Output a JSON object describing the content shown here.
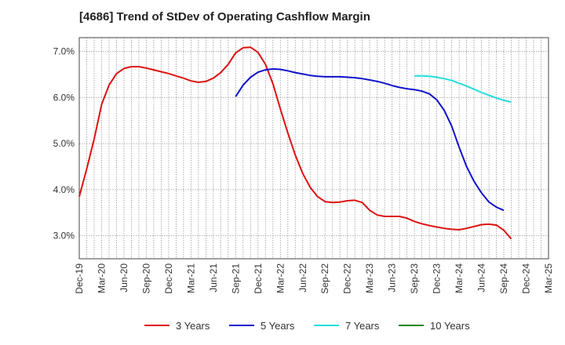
{
  "chart_data": {
    "type": "line",
    "title": "[4686]  Trend of StDev of Operating Cashflow Margin",
    "xlabel": "",
    "ylabel": "",
    "x_ticks": [
      "Dec-19",
      "Mar-20",
      "Jun-20",
      "Sep-20",
      "Dec-20",
      "Mar-21",
      "Jun-21",
      "Sep-21",
      "Dec-21",
      "Mar-22",
      "Jun-22",
      "Sep-22",
      "Dec-22",
      "Mar-23",
      "Jun-23",
      "Sep-23",
      "Dec-23",
      "Mar-24",
      "Jun-24",
      "Sep-24",
      "Dec-24",
      "Mar-25"
    ],
    "y_ticks": [
      "3.0%",
      "4.0%",
      "5.0%",
      "6.0%",
      "7.0%"
    ],
    "ylim": [
      2.5,
      7.3
    ],
    "grid": true,
    "legend_position": "bottom",
    "series": [
      {
        "name": "3 Years",
        "color": "#dd1111",
        "values": [
          3.85,
          4.45,
          5.1,
          5.85,
          6.27,
          6.52,
          6.63,
          6.67,
          6.67,
          6.64,
          6.6,
          6.56,
          6.52,
          6.47,
          6.42,
          6.36,
          6.33,
          6.35,
          6.42,
          6.54,
          6.72,
          6.97,
          7.08,
          7.09,
          6.98,
          6.72,
          6.3,
          5.75,
          5.23,
          4.75,
          4.35,
          4.05,
          3.85,
          3.74,
          3.72,
          3.73,
          3.76,
          3.77,
          3.72,
          3.55,
          3.45,
          3.42,
          3.42,
          3.42,
          3.38,
          3.31,
          3.26,
          3.22,
          3.19,
          3.16,
          3.14,
          3.13,
          3.16,
          3.2,
          3.24,
          3.25,
          3.23,
          3.12,
          2.93
        ]
      },
      {
        "name": "5 Years",
        "color": "#1111cc",
        "start_index": 21,
        "values": [
          6.02,
          6.27,
          6.44,
          6.55,
          6.6,
          6.62,
          6.61,
          6.58,
          6.54,
          6.51,
          6.48,
          6.46,
          6.45,
          6.45,
          6.45,
          6.44,
          6.43,
          6.41,
          6.38,
          6.35,
          6.31,
          6.26,
          6.22,
          6.19,
          6.17,
          6.14,
          6.08,
          5.95,
          5.72,
          5.38,
          4.92,
          4.5,
          4.18,
          3.93,
          3.73,
          3.62,
          3.55
        ]
      },
      {
        "name": "7 Years",
        "color": "#22dddd",
        "start_index": 45,
        "values": [
          6.47,
          6.47,
          6.46,
          6.44,
          6.41,
          6.37,
          6.31,
          6.25,
          6.18,
          6.11,
          6.05,
          5.99,
          5.94,
          5.9
        ]
      },
      {
        "name": "10 Years",
        "color": "#228822",
        "values": []
      }
    ]
  }
}
